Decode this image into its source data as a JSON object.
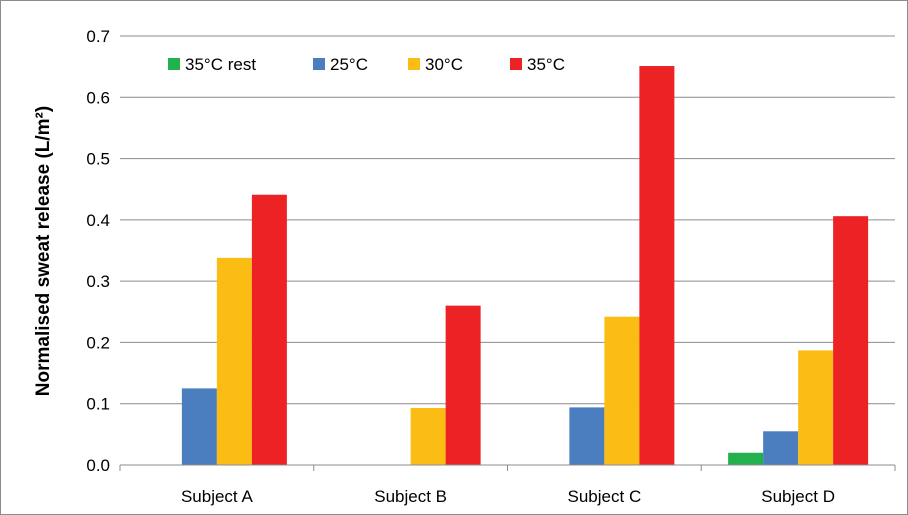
{
  "chart_data": {
    "type": "bar",
    "title": "",
    "xlabel": "",
    "ylabel": "Normalised sweat release (L/m²)",
    "ylim": [
      0,
      0.7
    ],
    "yticks": [
      "0.0",
      "0.1",
      "0.2",
      "0.3",
      "0.4",
      "0.5",
      "0.6",
      "0.7"
    ],
    "grid": "horizontal",
    "legend_position": "top-left",
    "categories": [
      "Subject A",
      "Subject B",
      "Subject C",
      "Subject D"
    ],
    "series": [
      {
        "name": "35°C rest",
        "color": "#22b14c",
        "values": [
          0,
          0,
          0,
          0.02
        ]
      },
      {
        "name": "25°C",
        "color": "#4a7ebf",
        "values": [
          0.125,
          0,
          0.094,
          0.055
        ]
      },
      {
        "name": "30°C",
        "color": "#fbbc14",
        "values": [
          0.338,
          0.093,
          0.242,
          0.187
        ]
      },
      {
        "name": "35°C",
        "color": "#ed2224",
        "values": [
          0.441,
          0.26,
          0.651,
          0.406
        ]
      }
    ]
  }
}
